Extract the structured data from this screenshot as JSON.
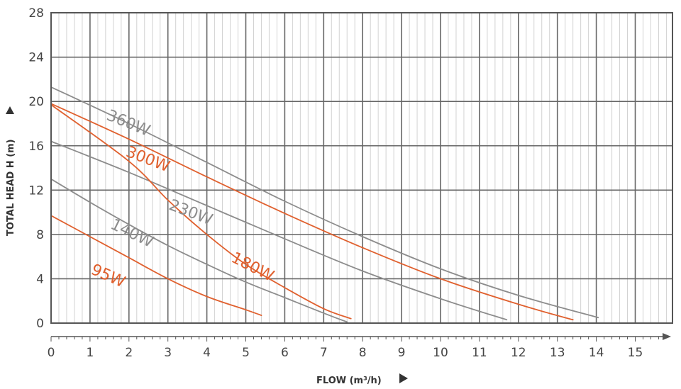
{
  "chart_data": {
    "type": "line",
    "xlabel": "FLOW (m³/h)",
    "ylabel": "TOTAL HEAD H (m)",
    "xlim": [
      0,
      15.9
    ],
    "ylim": [
      0,
      28
    ],
    "x_ticks": [
      "0",
      "1",
      "2",
      "3",
      "4",
      "5",
      "6",
      "7",
      "8",
      "9",
      "10",
      "11",
      "12",
      "13",
      "14",
      "15"
    ],
    "y_ticks": [
      "0",
      "4",
      "8",
      "12",
      "16",
      "20",
      "24",
      "28"
    ],
    "grid": true,
    "colors": {
      "orange": "#e0602e",
      "gray": "#8c8c8c"
    },
    "series": [
      {
        "name": "360W",
        "color": "#8c8c8c",
        "x": [
          0,
          2,
          4,
          6,
          8,
          10,
          12,
          14.05
        ],
        "y": [
          21.3,
          18.0,
          14.5,
          11.0,
          7.8,
          4.9,
          2.5,
          0.5
        ]
      },
      {
        "name": "300W",
        "color": "#e0602e",
        "x": [
          0,
          2,
          4,
          6,
          8,
          10,
          12,
          13.4
        ],
        "y": [
          19.8,
          16.6,
          13.2,
          9.9,
          6.8,
          4.0,
          1.7,
          0.3
        ]
      },
      {
        "name": "230W",
        "color": "#8c8c8c",
        "x": [
          0,
          2,
          4,
          6,
          8,
          10,
          11.7
        ],
        "y": [
          16.4,
          13.6,
          10.6,
          7.6,
          4.7,
          2.2,
          0.3
        ]
      },
      {
        "name": "180W",
        "color": "#e0602e",
        "x": [
          0,
          2,
          3,
          4,
          5,
          6,
          7,
          7.7
        ],
        "y": [
          19.7,
          14.6,
          11.1,
          8.0,
          5.3,
          3.2,
          1.3,
          0.4
        ]
      },
      {
        "name": "140W",
        "color": "#8c8c8c",
        "x": [
          0,
          1,
          2,
          3,
          4,
          5,
          6,
          7,
          7.6
        ],
        "y": [
          13.0,
          10.9,
          8.9,
          7.0,
          5.3,
          3.7,
          2.3,
          0.9,
          0.1
        ]
      },
      {
        "name": "95W",
        "color": "#e0602e",
        "x": [
          0,
          1,
          2,
          3,
          4,
          5,
          5.4
        ],
        "y": [
          9.7,
          7.8,
          5.9,
          4.0,
          2.4,
          1.2,
          0.7
        ]
      }
    ]
  }
}
